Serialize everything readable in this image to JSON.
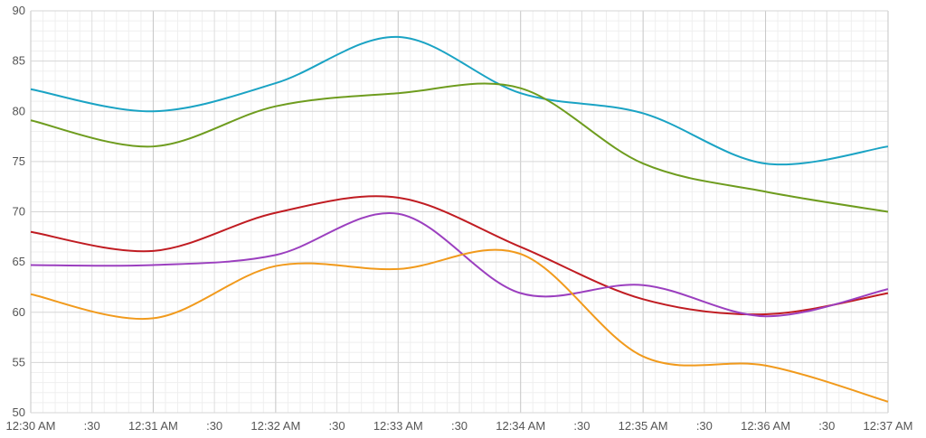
{
  "chart_data": {
    "type": "line",
    "title": "",
    "xlabel": "",
    "ylabel": "",
    "ylim": [
      50,
      90
    ],
    "y_ticks": [
      50,
      55,
      60,
      65,
      70,
      75,
      80,
      85,
      90
    ],
    "x_ticks": [
      "12:30 AM",
      ":30",
      "12:31 AM",
      ":30",
      "12:32 AM",
      ":30",
      "12:33 AM",
      ":30",
      "12:34 AM",
      ":30",
      "12:35 AM",
      ":30",
      "12:36 AM",
      ":30",
      "12:37 AM"
    ],
    "grid": true,
    "legend": "none",
    "curve": "smooth",
    "series": [
      {
        "color": "#1aa3c4",
        "values": [
          82.2,
          80.0,
          82.8,
          87.4,
          81.8,
          79.8,
          74.8,
          76.5
        ]
      },
      {
        "color": "#6e9c1e",
        "values": [
          79.1,
          76.5,
          80.5,
          81.8,
          82.3,
          74.8,
          72.0,
          70.0
        ]
      },
      {
        "color": "#c01c22",
        "values": [
          68.0,
          66.1,
          69.9,
          71.4,
          66.5,
          61.3,
          59.8,
          61.9
        ]
      },
      {
        "color": "#9b3fbf",
        "values": [
          64.7,
          64.7,
          65.7,
          69.8,
          61.9,
          62.7,
          59.6,
          62.3
        ]
      },
      {
        "color": "#f19a1c",
        "values": [
          61.8,
          59.4,
          64.6,
          64.3,
          65.8,
          55.6,
          54.7,
          51.1
        ]
      }
    ]
  }
}
